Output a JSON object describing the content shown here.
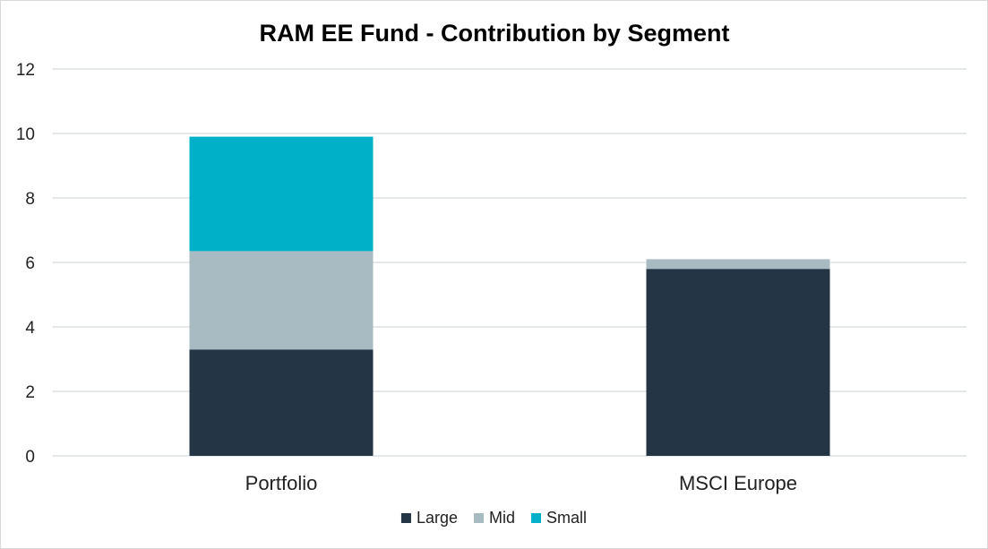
{
  "chart_data": {
    "type": "bar",
    "stacked": true,
    "title": "RAM EE Fund - Contribution by Segment",
    "xlabel": "",
    "ylabel": "",
    "categories": [
      "Portfolio",
      "MSCI Europe"
    ],
    "series": [
      {
        "name": "Large",
        "values": [
          3.3,
          5.8
        ],
        "color": "#243545"
      },
      {
        "name": "Mid",
        "values": [
          3.05,
          0.3
        ],
        "color": "#a9bbc2"
      },
      {
        "name": "Small",
        "values": [
          3.55,
          0.0
        ],
        "color": "#00b0c8"
      }
    ],
    "ylim": [
      0,
      12
    ],
    "yticks": [
      0,
      2,
      4,
      6,
      8,
      10,
      12
    ],
    "grid": true,
    "legend_position": "bottom"
  }
}
